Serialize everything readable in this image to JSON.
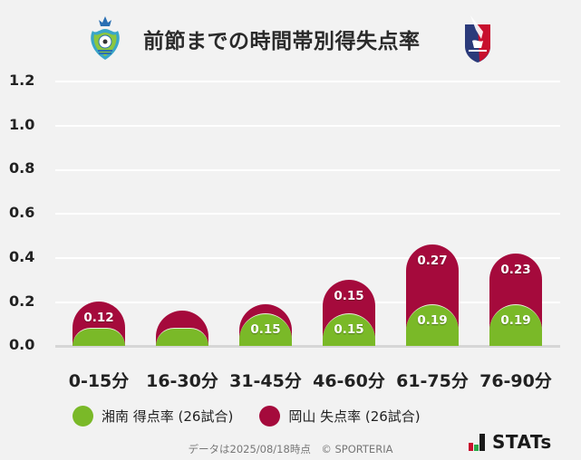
{
  "header": {
    "title": "前節までの時間帯別得失点率",
    "home_logo": "shonan-bellmare-crest-icon",
    "away_logo": "fagiano-okayama-crest-icon"
  },
  "colors": {
    "home": "#7ab928",
    "away": "#a50a3c",
    "background": "#f2f2f2",
    "grid": "#ffffff"
  },
  "legend": {
    "home_label": "湘南 得点率 (26試合)",
    "away_label": "岡山 失点率 (26試合)"
  },
  "footer": {
    "note": "データは2025/08/18時点　© SPORTERIA",
    "brand": "STATs"
  },
  "chart_data": {
    "type": "bar",
    "stacked": true,
    "title": "前節までの時間帯別得失点率",
    "xlabel": "",
    "ylabel": "",
    "ylim": [
      0,
      1.2
    ],
    "yticks": [
      "0.0",
      "0.2",
      "0.4",
      "0.6",
      "0.8",
      "1.0",
      "1.2"
    ],
    "grid": true,
    "legend_position": "bottom",
    "categories": [
      "0-15分",
      "16-30分",
      "31-45分",
      "46-60分",
      "61-75分",
      "76-90分"
    ],
    "series": [
      {
        "name": "湘南 得点率 (26試合)",
        "color": "#7ab928",
        "values": [
          0.08,
          0.08,
          0.15,
          0.15,
          0.19,
          0.19
        ],
        "labels": [
          "",
          "",
          "0.15",
          "0.15",
          "0.19",
          "0.19"
        ]
      },
      {
        "name": "岡山 失点率 (26試合)",
        "color": "#a50a3c",
        "values": [
          0.12,
          0.08,
          0.04,
          0.15,
          0.27,
          0.23
        ],
        "labels": [
          "0.12",
          "",
          "",
          "0.15",
          "0.27",
          "0.23"
        ]
      }
    ]
  }
}
